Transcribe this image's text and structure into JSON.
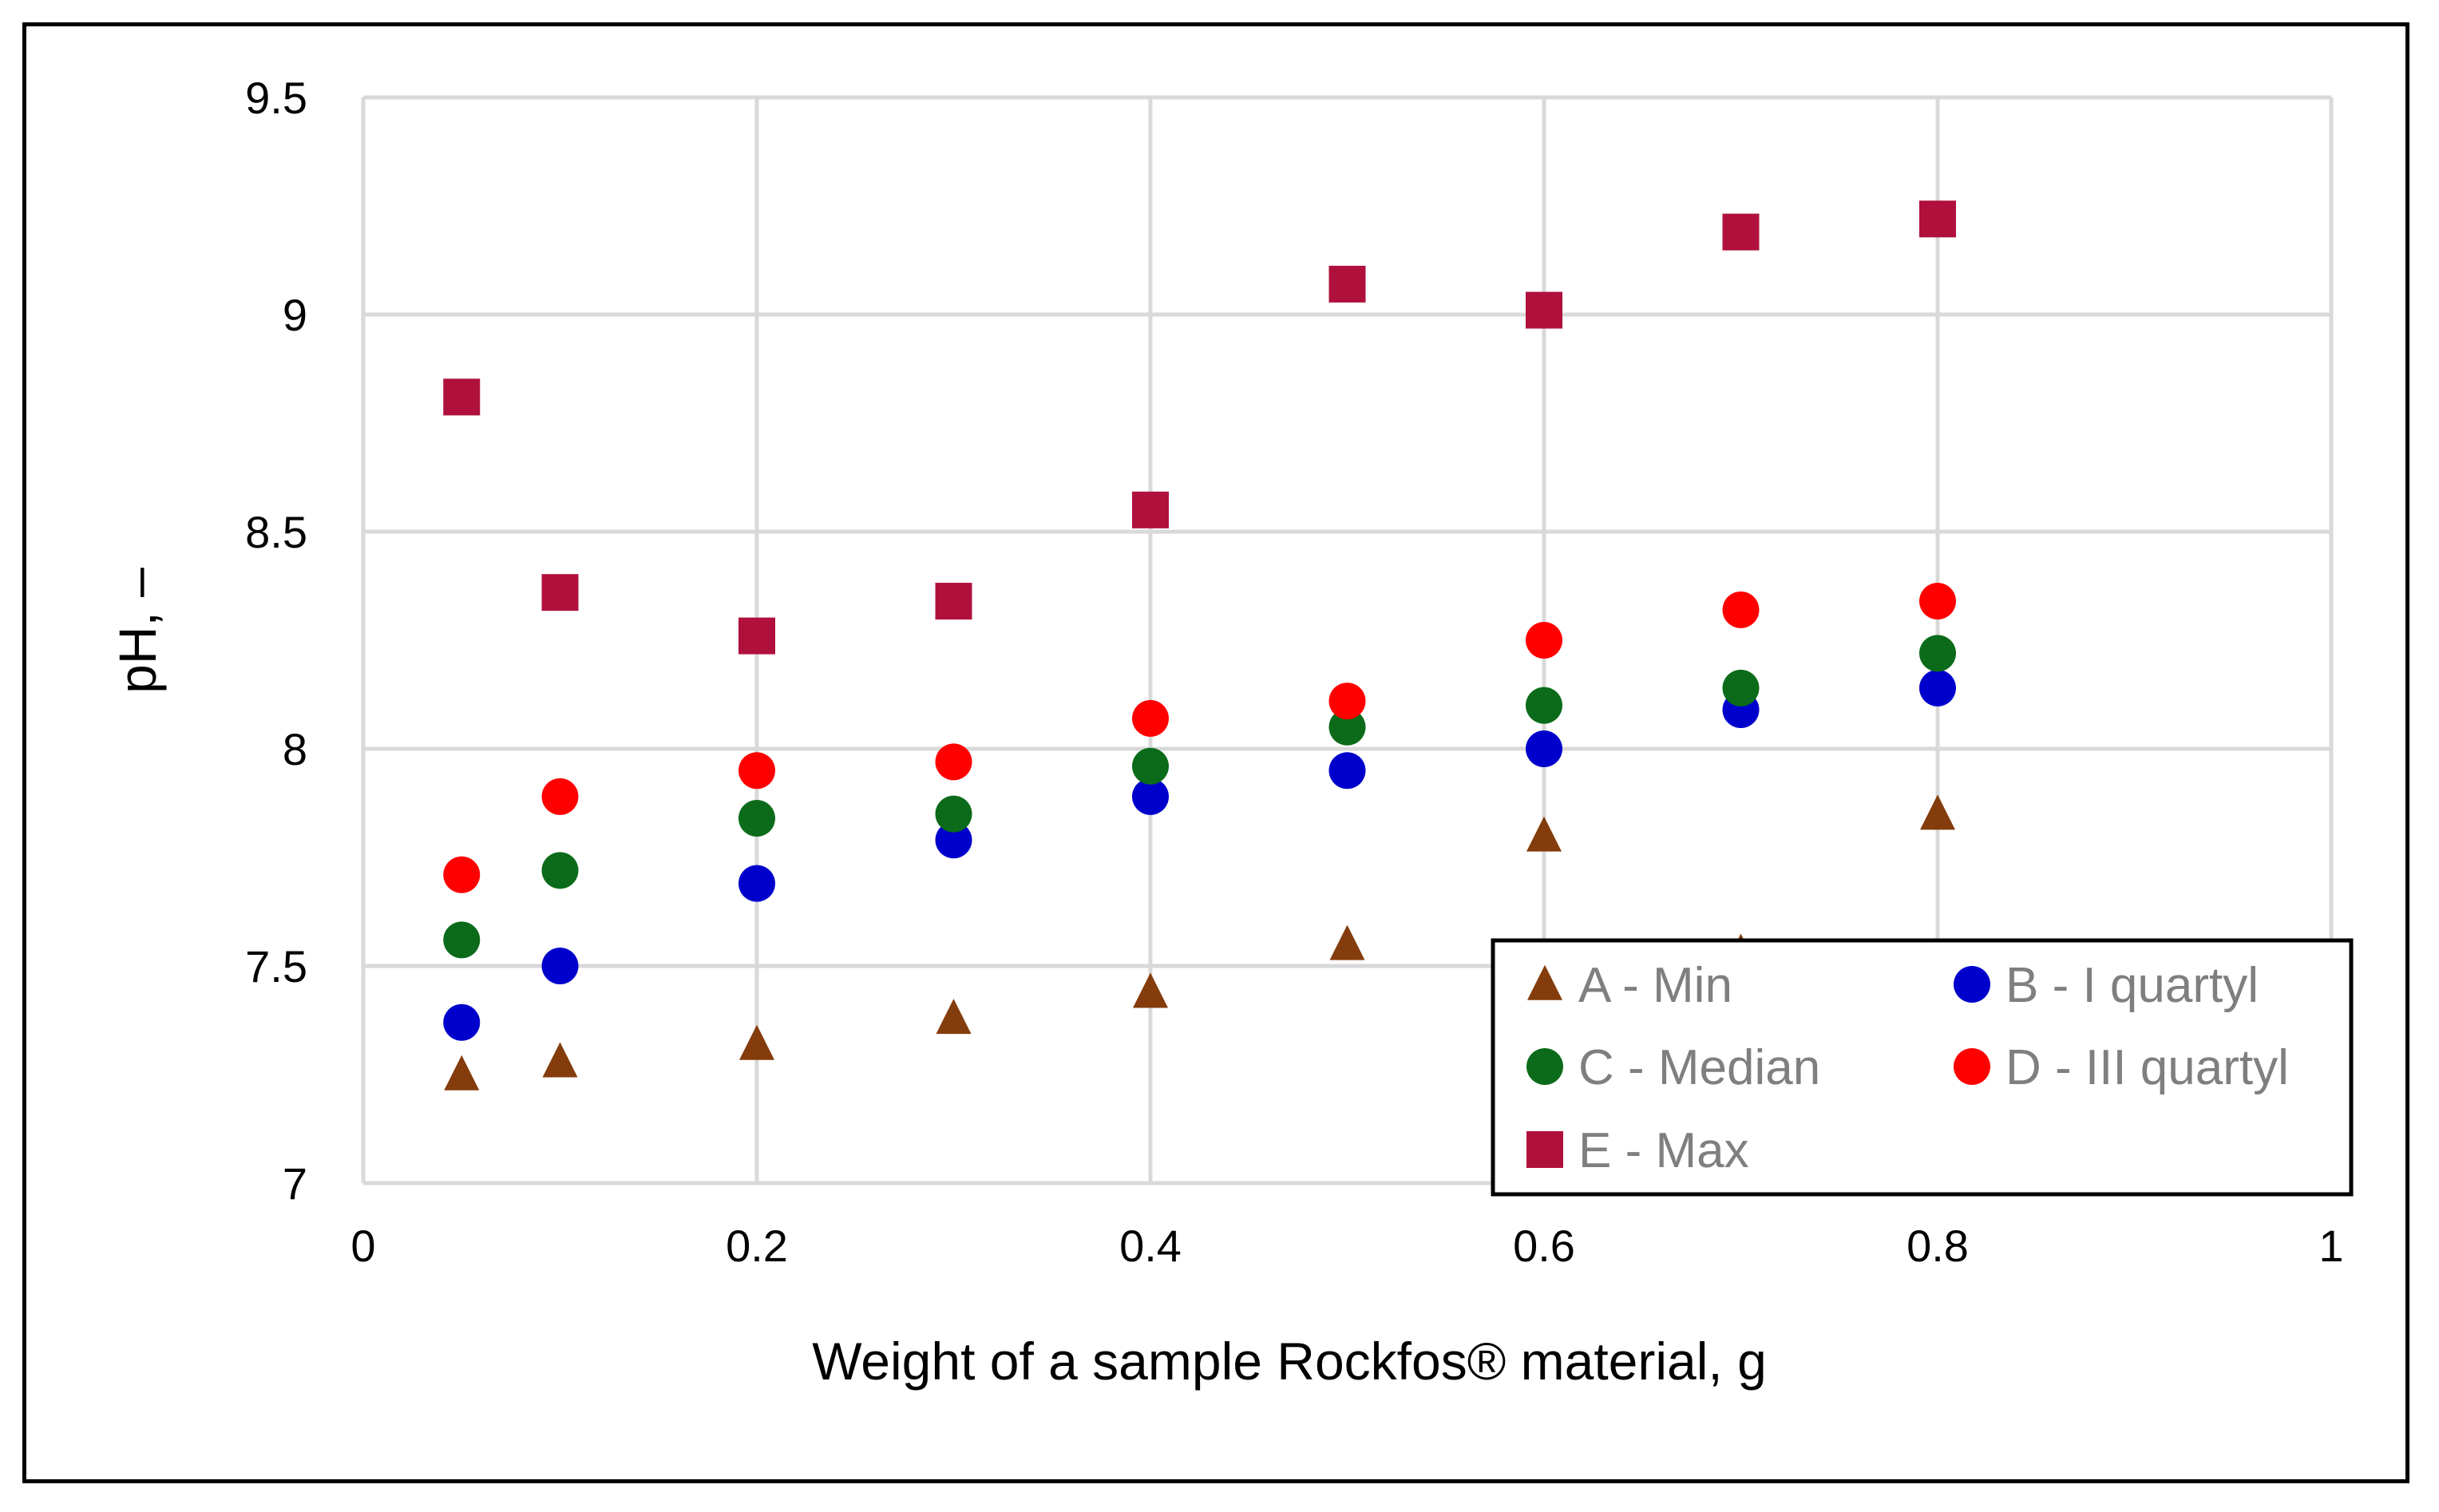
{
  "chart_data": {
    "type": "scatter",
    "title": "",
    "xlabel": "Weight of a sample Rockfos® material, g",
    "ylabel": "pH, –",
    "xlim": [
      0,
      1
    ],
    "ylim": [
      7,
      9.5
    ],
    "x_ticks": [
      0,
      0.2,
      0.4,
      0.6,
      0.8,
      1
    ],
    "x_tick_labels": [
      "0",
      "0.2",
      "0.4",
      "0.6",
      "0.8",
      "1"
    ],
    "y_ticks": [
      7,
      7.5,
      8,
      8.5,
      9,
      9.5
    ],
    "y_tick_labels": [
      "7",
      "7.5",
      "8",
      "8.5",
      "9",
      "9.5"
    ],
    "grid": true,
    "legend_position": "bottom-right",
    "x": [
      0.05,
      0.1,
      0.2,
      0.3,
      0.4,
      0.5,
      0.6,
      0.7,
      0.8
    ],
    "series": [
      {
        "name": "A - Min",
        "marker": "triangle",
        "color": "#843c0c",
        "values": [
          7.25,
          7.28,
          7.32,
          7.38,
          7.44,
          7.55,
          7.8,
          7.53,
          7.85
        ]
      },
      {
        "name": "B - I quartyl",
        "marker": "circle",
        "color": "#0000cc",
        "values": [
          7.37,
          7.5,
          7.69,
          7.79,
          7.89,
          7.95,
          8.0,
          8.09,
          8.14
        ]
      },
      {
        "name": "C - Median",
        "marker": "circle",
        "color": "#0b6b1a",
        "values": [
          7.56,
          7.72,
          7.84,
          7.85,
          7.96,
          8.05,
          8.1,
          8.14,
          8.22
        ]
      },
      {
        "name": "D - III quartyl",
        "marker": "circle",
        "color": "#ff0000",
        "values": [
          7.71,
          7.89,
          7.95,
          7.97,
          8.07,
          8.11,
          8.25,
          8.32,
          8.34
        ]
      },
      {
        "name": "E - Max",
        "marker": "square",
        "color": "#b0103c",
        "values": [
          8.81,
          8.36,
          8.26,
          8.34,
          8.55,
          9.07,
          9.01,
          9.19,
          9.22
        ]
      }
    ]
  }
}
